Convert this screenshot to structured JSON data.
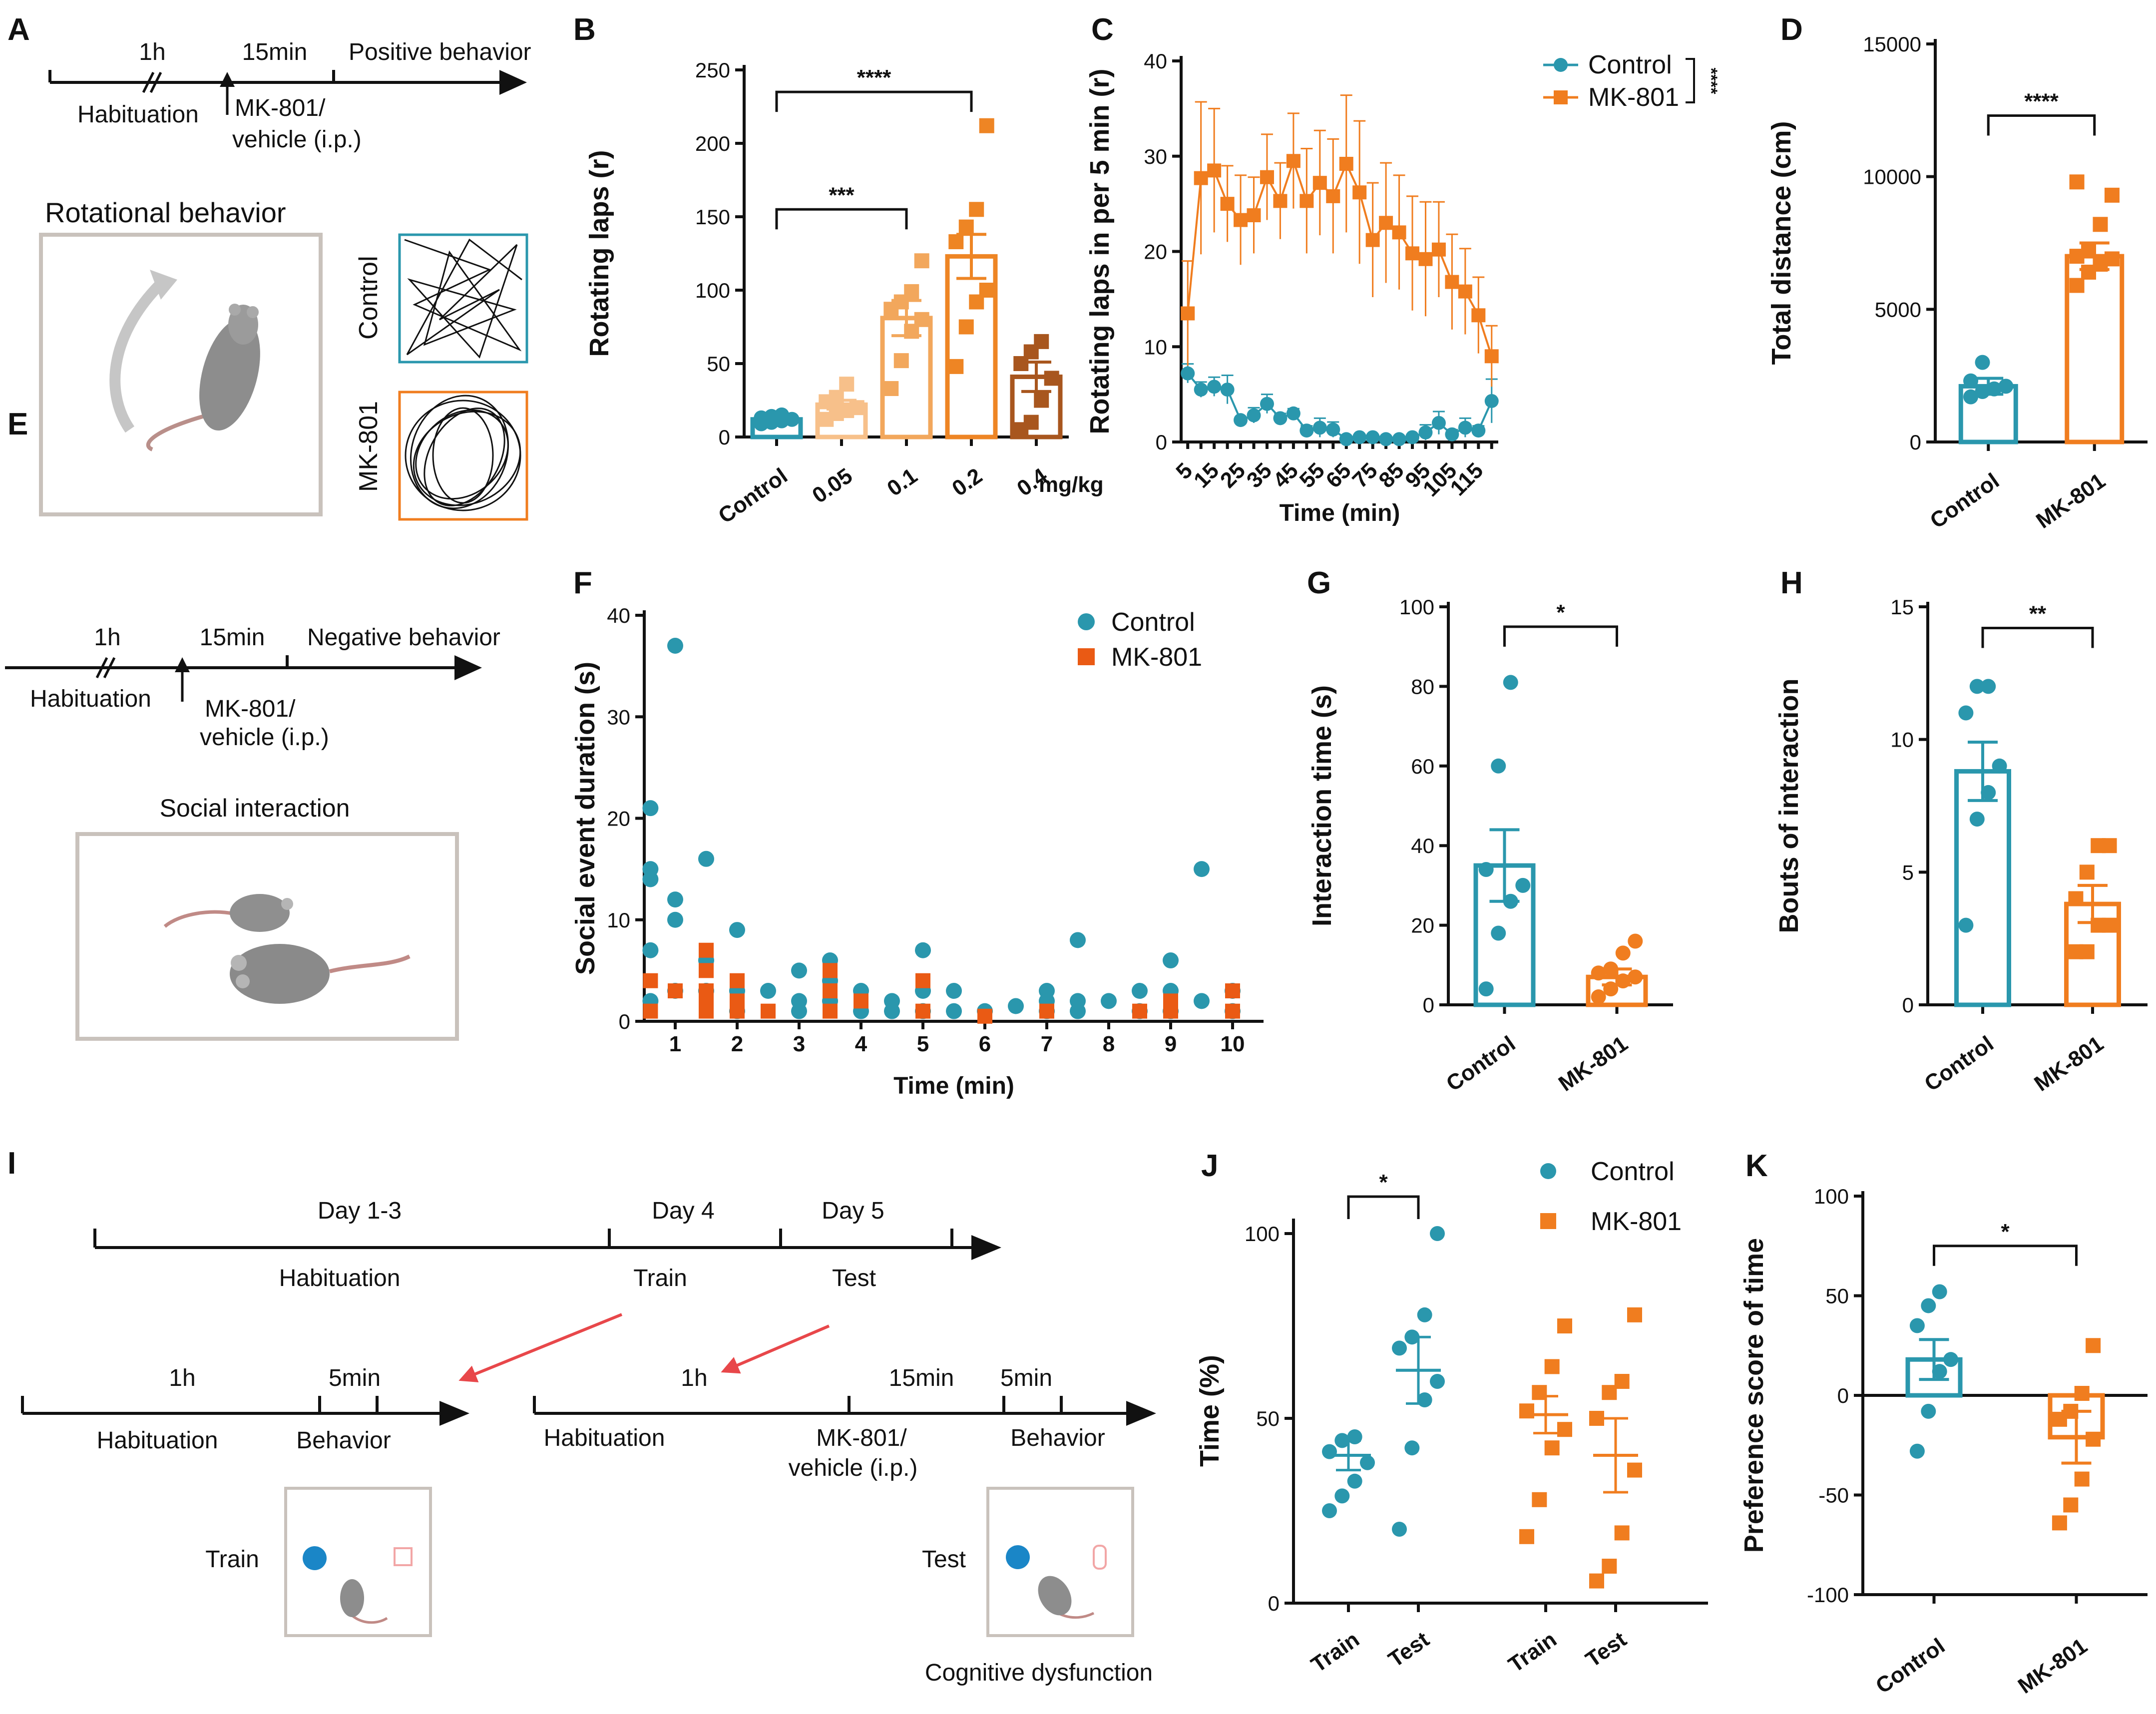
{
  "colors": {
    "control": "#2a97ad",
    "mk801": "#f07d1f",
    "mk801_scatter": "#ea5a14",
    "dose_0_05": "#f7c08a",
    "dose_0_1": "#f2a75c",
    "dose_0_2": "#ee8524",
    "dose_0_4": "#a8561e",
    "arrow": "#e8474a"
  },
  "panel_A": {
    "letter": "A",
    "timeline": {
      "t1": "1h",
      "t2": "15min",
      "t3": "Positive behavior",
      "hab": "Habituation",
      "drug": "MK-801/",
      "drug2": "vehicle (i.p.)"
    },
    "title": "Rotational behavior",
    "control_label": "Control",
    "mk_label": "MK-801"
  },
  "panel_E": {
    "letter": "E",
    "timeline": {
      "t1": "1h",
      "t2": "15min",
      "t3": "Negative behavior",
      "hab": "Habituation",
      "drug": "MK-801/",
      "drug2": "vehicle (i.p.)"
    },
    "title": "Social interaction"
  },
  "panel_I": {
    "letter": "I",
    "top": {
      "d13": "Day 1-3",
      "d4": "Day 4",
      "d5": "Day 5",
      "hab": "Habituation",
      "train": "Train",
      "test": "Test"
    },
    "left": {
      "t1": "1h",
      "t2": "5min",
      "hab": "Habituation",
      "beh": "Behavior",
      "arena": "Train"
    },
    "right": {
      "t1": "1h",
      "t2": "15min",
      "t3": "5min",
      "hab": "Habituation",
      "drug": "MK-801/",
      "drug2": "vehicle (i.p.)",
      "beh": "Behavior",
      "arena": "Test",
      "caption": "Cognitive dysfunction"
    }
  },
  "chart_data": [
    {
      "id": "B",
      "letter": "B",
      "type": "bar",
      "ylabel": "Rotating laps (r)",
      "ylim": [
        0,
        250
      ],
      "yticks": [
        0,
        50,
        100,
        150,
        200,
        250
      ],
      "categories": [
        "Control",
        "0.05",
        "0.1",
        "0.2",
        "0.4"
      ],
      "unit_label": "mg/kg",
      "means": [
        12,
        22,
        81,
        123,
        41
      ],
      "sem": [
        2,
        3,
        12,
        15,
        10
      ],
      "points": [
        [
          9,
          10,
          11,
          12,
          13,
          14,
          15
        ],
        [
          12,
          16,
          18,
          20,
          24,
          27,
          36
        ],
        [
          33,
          52,
          72,
          80,
          87,
          92,
          99,
          120
        ],
        [
          48,
          75,
          92,
          100,
          133,
          143,
          155,
          212
        ],
        [
          5,
          10,
          25,
          40,
          50,
          58,
          65
        ]
      ],
      "color_keys": [
        "control",
        "dose_0_05",
        "dose_0_1",
        "dose_0_2",
        "dose_0_4"
      ],
      "significance": [
        {
          "from": 0,
          "to": 2,
          "label": "***",
          "y": 155
        },
        {
          "from": 0,
          "to": 3,
          "label": "****",
          "y": 235
        }
      ]
    },
    {
      "id": "C",
      "letter": "C",
      "type": "line",
      "xlabel": "Time (min)",
      "ylabel": "Rotating laps in per 5 min (r)",
      "ylim": [
        0,
        40
      ],
      "yticks": [
        0,
        10,
        20,
        30,
        40
      ],
      "xticks": [
        "5",
        "15",
        "25",
        "35",
        "45",
        "55",
        "65",
        "75",
        "85",
        "95",
        "105",
        "115"
      ],
      "x": [
        5,
        10,
        15,
        20,
        25,
        30,
        35,
        40,
        45,
        50,
        55,
        60,
        65,
        70,
        75,
        80,
        85,
        90,
        95,
        100,
        105,
        110,
        115,
        120
      ],
      "series": [
        {
          "name": "Control",
          "color_key": "control",
          "marker": "circle",
          "values": [
            7.2,
            5.5,
            5.8,
            5.5,
            2.3,
            2.8,
            4.0,
            2.5,
            3.0,
            1.2,
            1.5,
            1.3,
            0.3,
            0.5,
            0.5,
            0.3,
            0.3,
            0.5,
            1.0,
            2.0,
            0.8,
            1.5,
            1.2,
            4.3
          ],
          "err": [
            1.0,
            0.8,
            1.0,
            1.5,
            0.3,
            0.8,
            1.0,
            0.5,
            0.5,
            0.5,
            1.0,
            0.8,
            0.2,
            0.3,
            0.3,
            0.2,
            0.2,
            0.3,
            0.8,
            1.2,
            0.5,
            1.0,
            0.5,
            2.3
          ]
        },
        {
          "name": "MK-801",
          "color_key": "mk801",
          "marker": "square",
          "values": [
            13.5,
            27.7,
            28.5,
            25.0,
            23.3,
            23.8,
            27.8,
            25.3,
            29.5,
            25.3,
            27.2,
            25.8,
            29.2,
            26.2,
            21.2,
            23.0,
            22.0,
            19.8,
            19.2,
            20.2,
            16.8,
            15.8,
            13.3,
            9.0
          ],
          "err": [
            5.5,
            8.0,
            6.5,
            4.0,
            4.7,
            4.0,
            4.5,
            4.0,
            5.0,
            5.5,
            5.5,
            6.0,
            7.2,
            7.5,
            6.0,
            6.3,
            6.0,
            6.0,
            6.0,
            5.0,
            5.0,
            4.5,
            4.0,
            3.2
          ]
        }
      ],
      "significance": "****"
    },
    {
      "id": "D",
      "letter": "D",
      "type": "bar",
      "ylabel": "Total distance (cm)",
      "ylim": [
        0,
        15000
      ],
      "yticks": [
        0,
        5000,
        10000,
        15000
      ],
      "categories": [
        "Control",
        "MK-801"
      ],
      "means": [
        2100,
        7000
      ],
      "sem": [
        300,
        500
      ],
      "points": [
        [
          1700,
          1900,
          2000,
          2100,
          2300,
          3000
        ],
        [
          5900,
          6400,
          6700,
          6900,
          7000,
          7200,
          8200,
          9300,
          9800
        ]
      ],
      "color_keys": [
        "control",
        "mk801"
      ],
      "significance": [
        {
          "from": 0,
          "to": 1,
          "label": "****",
          "y": 12300
        }
      ]
    },
    {
      "id": "F",
      "letter": "F",
      "type": "scatter",
      "xlabel": "Time (min)",
      "ylabel": "Social event duration (s)",
      "xlim": [
        0.5,
        10.5
      ],
      "ylim": [
        0,
        40
      ],
      "yticks": [
        0,
        10,
        20,
        30,
        40
      ],
      "xticks": [
        1,
        2,
        3,
        4,
        5,
        6,
        7,
        8,
        9,
        10
      ],
      "series": [
        {
          "name": "Control",
          "color_key": "control",
          "marker": "circle",
          "points": [
            [
              0.6,
              21
            ],
            [
              0.6,
              15
            ],
            [
              0.6,
              14
            ],
            [
              0.6,
              7
            ],
            [
              0.6,
              2
            ],
            [
              1,
              37
            ],
            [
              1,
              12
            ],
            [
              1,
              10
            ],
            [
              1,
              3
            ],
            [
              1.5,
              16
            ],
            [
              1.5,
              6
            ],
            [
              1.5,
              3
            ],
            [
              2,
              9
            ],
            [
              2,
              3
            ],
            [
              2,
              1
            ],
            [
              2.5,
              3
            ],
            [
              3,
              5
            ],
            [
              3,
              2
            ],
            [
              3,
              1
            ],
            [
              3.5,
              6
            ],
            [
              3.5,
              4
            ],
            [
              3.5,
              2
            ],
            [
              4,
              3
            ],
            [
              4,
              1
            ],
            [
              4.5,
              2
            ],
            [
              4.5,
              1
            ],
            [
              5,
              7
            ],
            [
              5,
              3
            ],
            [
              5,
              1
            ],
            [
              5.5,
              3
            ],
            [
              5.5,
              1
            ],
            [
              6,
              1
            ],
            [
              6.5,
              1.5
            ],
            [
              7,
              3
            ],
            [
              7,
              2
            ],
            [
              7,
              1
            ],
            [
              7.5,
              8
            ],
            [
              7.5,
              2
            ],
            [
              7.5,
              1
            ],
            [
              8,
              2
            ],
            [
              8.5,
              3
            ],
            [
              8.5,
              1
            ],
            [
              9,
              6
            ],
            [
              9,
              3
            ],
            [
              9,
              1
            ],
            [
              9.5,
              15
            ],
            [
              9.5,
              2
            ],
            [
              10,
              3
            ],
            [
              10,
              1
            ]
          ]
        },
        {
          "name": "MK-801",
          "color_key": "mk801_scatter",
          "marker": "square",
          "points": [
            [
              0.6,
              4
            ],
            [
              0.6,
              1
            ],
            [
              1,
              3
            ],
            [
              1.5,
              7
            ],
            [
              1.5,
              5
            ],
            [
              1.5,
              3
            ],
            [
              1.5,
              2
            ],
            [
              1.5,
              1
            ],
            [
              2,
              4
            ],
            [
              2,
              2
            ],
            [
              2,
              1
            ],
            [
              2.5,
              1
            ],
            [
              3.5,
              5
            ],
            [
              3.5,
              3
            ],
            [
              3.5,
              1
            ],
            [
              4,
              2
            ],
            [
              5,
              4
            ],
            [
              5,
              1
            ],
            [
              6,
              0.5
            ],
            [
              7,
              1
            ],
            [
              8.5,
              1
            ],
            [
              9,
              2
            ],
            [
              9,
              1
            ],
            [
              10,
              3
            ],
            [
              10,
              1
            ]
          ]
        }
      ]
    },
    {
      "id": "G",
      "letter": "G",
      "type": "bar",
      "ylabel": "Interaction time (s)",
      "ylim": [
        0,
        100
      ],
      "yticks": [
        0,
        20,
        40,
        60,
        80,
        100
      ],
      "categories": [
        "Control",
        "MK-801"
      ],
      "means": [
        35,
        7
      ],
      "sem": [
        9,
        2
      ],
      "points": [
        [
          4,
          18,
          26,
          30,
          34,
          60,
          81
        ],
        [
          2,
          4,
          6,
          7,
          8,
          9,
          13,
          16
        ]
      ],
      "color_keys": [
        "control",
        "mk801"
      ],
      "significance": [
        {
          "from": 0,
          "to": 1,
          "label": "*",
          "y": 95
        }
      ]
    },
    {
      "id": "H",
      "letter": "H",
      "type": "bar",
      "ylabel": "Bouts of interaction",
      "ylim": [
        0,
        15
      ],
      "yticks": [
        0,
        5,
        10,
        15
      ],
      "categories": [
        "Control",
        "MK-801"
      ],
      "means": [
        8.8,
        3.8
      ],
      "sem": [
        1.1,
        0.7
      ],
      "points": [
        [
          3,
          7,
          8,
          9,
          11,
          12,
          12
        ],
        [
          2,
          2,
          3,
          3,
          4,
          5,
          6,
          6
        ]
      ],
      "color_keys": [
        "control",
        "mk801"
      ],
      "significance": [
        {
          "from": 0,
          "to": 1,
          "label": "**",
          "y": 14.2
        }
      ]
    },
    {
      "id": "J",
      "letter": "J",
      "type": "scatter",
      "ylabel": "Time (%)",
      "ylim": [
        0,
        100
      ],
      "yticks": [
        0,
        50,
        100
      ],
      "categories": [
        "Train",
        "Test",
        "Train",
        "Test"
      ],
      "means": [
        40,
        63,
        51,
        40
      ],
      "sem": [
        4,
        9,
        5,
        10
      ],
      "points": [
        [
          25,
          29,
          33,
          38,
          41,
          44,
          45
        ],
        [
          20,
          42,
          55,
          60,
          69,
          72,
          78,
          100
        ],
        [
          18,
          28,
          42,
          47,
          52,
          57,
          64,
          75
        ],
        [
          6,
          10,
          19,
          36,
          50,
          57,
          60,
          78
        ]
      ],
      "color_keys": [
        "control",
        "control",
        "mk801",
        "mk801"
      ],
      "legend": [
        {
          "name": "Control",
          "color_key": "control"
        },
        {
          "name": "MK-801",
          "color_key": "mk801"
        }
      ],
      "significance": [
        {
          "from": 0,
          "to": 1,
          "label": "*",
          "y": 110
        }
      ]
    },
    {
      "id": "K",
      "letter": "K",
      "type": "bar",
      "ylabel": "Preference score of time",
      "ylim": [
        -100,
        100
      ],
      "yticks": [
        -100,
        -50,
        0,
        50,
        100
      ],
      "categories": [
        "Control",
        "MK-801"
      ],
      "means": [
        18,
        -21
      ],
      "sem": [
        10,
        13
      ],
      "points": [
        [
          -28,
          -8,
          12,
          18,
          35,
          45,
          52
        ],
        [
          -64,
          -55,
          -42,
          -22,
          -12,
          -8,
          1,
          25
        ]
      ],
      "color_keys": [
        "control",
        "mk801"
      ],
      "significance": [
        {
          "from": 0,
          "to": 1,
          "label": "*",
          "y": 75
        }
      ]
    }
  ]
}
